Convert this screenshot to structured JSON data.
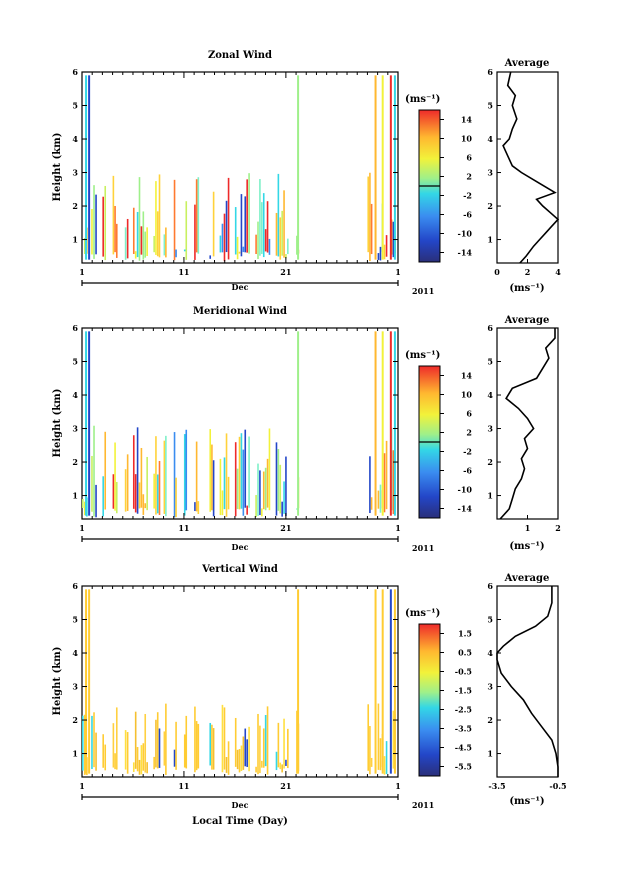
{
  "chart_data": [
    {
      "type": "heatmap",
      "title": "Zonal Wind",
      "ylabel": "Height (km)",
      "ylim": [
        0.3,
        6
      ],
      "yticks": [
        1,
        2,
        3,
        4,
        5,
        6
      ],
      "xticks": [
        "1",
        "11",
        "21",
        "1"
      ],
      "xrange": [
        1,
        32
      ],
      "month_label": "Dec",
      "year_label": "2011",
      "colorbar": {
        "unit": "(ms⁻¹)",
        "tick_labels": [
          "14",
          "10",
          "6",
          "2",
          "-2",
          "-6",
          "-10",
          "-14"
        ],
        "range": [
          -16,
          16
        ]
      },
      "observation_blocks_day": [
        [
          1.0,
          1.6
        ],
        [
          1.9,
          2.5
        ],
        [
          3.0,
          3.4
        ],
        [
          4.0,
          4.5
        ],
        [
          5.2,
          5.6
        ],
        [
          6.0,
          7.5
        ],
        [
          8.0,
          8.7
        ],
        [
          9.0,
          9.3
        ],
        [
          10.0,
          10.3
        ],
        [
          11.0,
          11.3
        ],
        [
          12.0,
          12.5
        ],
        [
          13.5,
          14.0
        ],
        [
          14.5,
          15.5
        ],
        [
          16.0,
          17.5
        ],
        [
          18.0,
          19.5
        ],
        [
          20.0,
          21.3
        ],
        [
          22.0,
          22.3
        ],
        [
          29.0,
          29.5
        ],
        [
          30.0,
          31.0
        ],
        [
          31.3,
          31.8
        ]
      ],
      "average_profile": {
        "title": "Average",
        "xlabel": "(ms⁻¹)",
        "xlim": [
          0,
          4
        ],
        "xticks": [
          0,
          2,
          4
        ],
        "height_km": [
          0.3,
          0.5,
          0.8,
          1.0,
          1.2,
          1.4,
          1.6,
          1.8,
          2.0,
          2.2,
          2.4,
          2.7,
          3.0,
          3.2,
          3.5,
          3.8,
          4.0,
          4.3,
          4.6,
          5.0,
          5.3,
          5.6,
          6.0
        ],
        "values": [
          1.5,
          1.9,
          2.4,
          2.8,
          3.2,
          3.6,
          4.0,
          3.5,
          3.0,
          2.6,
          3.8,
          2.7,
          1.6,
          1.0,
          0.7,
          0.4,
          0.8,
          1.0,
          1.3,
          1.0,
          1.2,
          0.7,
          0.9
        ]
      }
    },
    {
      "type": "heatmap",
      "title": "Meridional Wind",
      "ylabel": "Height (km)",
      "ylim": [
        0.3,
        6
      ],
      "yticks": [
        1,
        2,
        3,
        4,
        5,
        6
      ],
      "xticks": [
        "1",
        "11",
        "21",
        "1"
      ],
      "xrange": [
        1,
        32
      ],
      "month_label": "Dec",
      "year_label": "2011",
      "colorbar": {
        "unit": "(ms⁻¹)",
        "tick_labels": [
          "14",
          "10",
          "6",
          "2",
          "-2",
          "-6",
          "-10",
          "-14"
        ],
        "range": [
          -16,
          16
        ]
      },
      "observation_blocks_day": [
        [
          1.0,
          1.6
        ],
        [
          1.9,
          2.5
        ],
        [
          3.0,
          3.4
        ],
        [
          4.0,
          4.5
        ],
        [
          5.2,
          5.6
        ],
        [
          6.0,
          7.5
        ],
        [
          8.0,
          8.7
        ],
        [
          9.0,
          9.3
        ],
        [
          10.0,
          10.3
        ],
        [
          11.0,
          11.3
        ],
        [
          12.0,
          12.5
        ],
        [
          13.5,
          14.0
        ],
        [
          14.5,
          15.5
        ],
        [
          16.0,
          17.5
        ],
        [
          18.0,
          19.5
        ],
        [
          20.0,
          21.3
        ],
        [
          22.0,
          22.3
        ],
        [
          29.0,
          29.5
        ],
        [
          30.0,
          31.0
        ],
        [
          31.3,
          31.8
        ]
      ],
      "average_profile": {
        "title": "Average",
        "xlabel": "(ms⁻¹)",
        "xlim": [
          0,
          2
        ],
        "xticks": [
          1,
          2
        ],
        "height_km": [
          0.3,
          0.6,
          0.9,
          1.2,
          1.5,
          1.8,
          2.1,
          2.4,
          2.7,
          3.0,
          3.3,
          3.6,
          3.9,
          4.2,
          4.5,
          4.8,
          5.1,
          5.4,
          5.7,
          6.0
        ],
        "values": [
          0.1,
          0.4,
          0.5,
          0.6,
          0.8,
          0.9,
          0.8,
          1.0,
          0.9,
          1.2,
          1.0,
          0.7,
          0.3,
          0.5,
          1.3,
          1.5,
          1.7,
          1.6,
          1.9,
          1.9
        ]
      }
    },
    {
      "type": "heatmap",
      "title": "Vertical Wind",
      "ylabel": "Height (km)",
      "xlabel": "Local Time (Day)",
      "ylim": [
        0.3,
        6
      ],
      "yticks": [
        1,
        2,
        3,
        4,
        5,
        6
      ],
      "xticks": [
        "1",
        "11",
        "21",
        "1"
      ],
      "xrange": [
        1,
        32
      ],
      "month_label": "Dec",
      "year_label": "2011",
      "colorbar": {
        "unit": "(ms⁻¹)",
        "tick_labels": [
          "1.5",
          "0.5",
          "-0.5",
          "-1.5",
          "-2.5",
          "-3.5",
          "-4.5",
          "-5.5"
        ],
        "range": [
          -6,
          2
        ]
      },
      "observation_blocks_day": [
        [
          1.0,
          1.6
        ],
        [
          1.9,
          2.5
        ],
        [
          3.0,
          3.4
        ],
        [
          4.0,
          4.5
        ],
        [
          5.2,
          5.6
        ],
        [
          6.0,
          7.5
        ],
        [
          8.0,
          8.7
        ],
        [
          9.0,
          9.3
        ],
        [
          10.0,
          10.3
        ],
        [
          11.0,
          11.3
        ],
        [
          12.0,
          12.5
        ],
        [
          13.5,
          14.0
        ],
        [
          14.5,
          15.5
        ],
        [
          16.0,
          17.5
        ],
        [
          18.0,
          19.5
        ],
        [
          20.0,
          21.3
        ],
        [
          22.0,
          22.3
        ],
        [
          29.0,
          29.5
        ],
        [
          30.0,
          31.0
        ],
        [
          31.3,
          31.8
        ]
      ],
      "average_profile": {
        "title": "Average",
        "xlabel": "(ms⁻¹)",
        "xlim": [
          -3.5,
          -0.5
        ],
        "xticks": [
          -3.5,
          -0.5
        ],
        "xtick_labels": [
          "-3.5",
          "-0.5"
        ],
        "height_km": [
          0.3,
          0.6,
          1.0,
          1.4,
          1.8,
          2.2,
          2.6,
          3.0,
          3.4,
          3.8,
          4.0,
          4.2,
          4.5,
          4.8,
          5.1,
          5.5,
          6.0
        ],
        "values": [
          -0.5,
          -0.5,
          -0.6,
          -0.8,
          -1.3,
          -1.8,
          -2.2,
          -2.8,
          -3.3,
          -3.5,
          -3.5,
          -3.2,
          -2.6,
          -1.6,
          -1.0,
          -0.8,
          -0.8
        ]
      }
    }
  ]
}
